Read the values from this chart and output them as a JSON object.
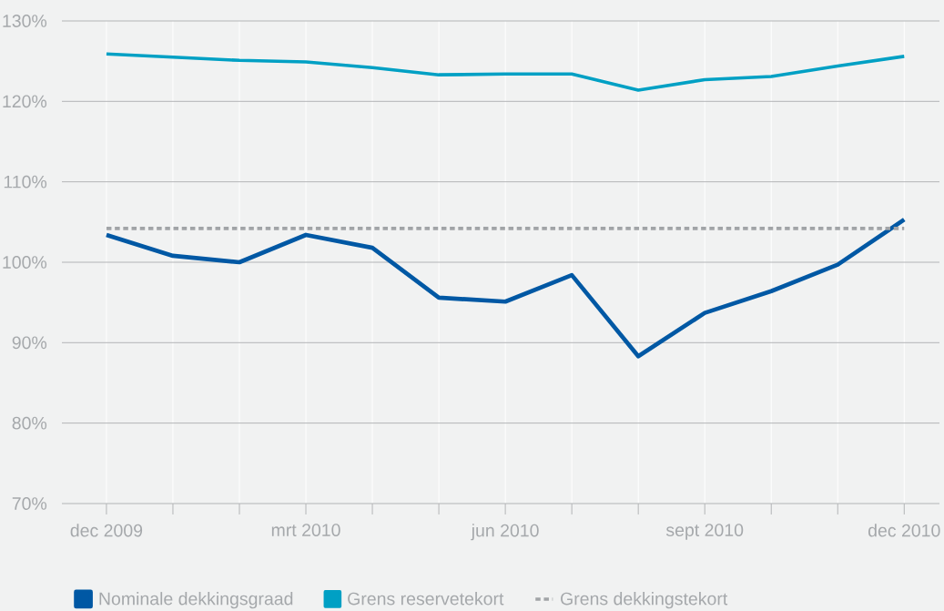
{
  "chart_data": {
    "type": "line",
    "categories": [
      "dec 2009",
      null,
      null,
      "mrt 2010",
      null,
      null,
      "jun 2010",
      null,
      null,
      "sept 2010",
      null,
      null,
      "dec 2010"
    ],
    "series": [
      {
        "name": "Nominale dekkingsgraad",
        "color": "#0058a4",
        "values": [
          103.4,
          100.8,
          100.0,
          103.4,
          101.8,
          95.6,
          95.1,
          98.4,
          88.3,
          93.7,
          96.4,
          99.7,
          105.3
        ]
      },
      {
        "name": "Grens reservetekort",
        "color": "#00a0c4",
        "values": [
          125.9,
          125.5,
          125.1,
          124.9,
          124.2,
          123.3,
          123.4,
          123.4,
          121.4,
          122.7,
          123.1,
          124.4,
          125.6
        ]
      },
      {
        "name": "Grens dekkingstekort",
        "color": "#a1a4a7",
        "line_style": "dashed",
        "values": [
          104.2,
          104.2,
          104.2,
          104.2,
          104.2,
          104.2,
          104.2,
          104.2,
          104.2,
          104.2,
          104.2,
          104.2,
          104.2
        ]
      }
    ],
    "ylim": [
      70,
      130
    ],
    "yticks": [
      {
        "value": 70,
        "label": "70%"
      },
      {
        "value": 80,
        "label": "80%"
      },
      {
        "value": 90,
        "label": "90%"
      },
      {
        "value": 100,
        "label": "100%"
      },
      {
        "value": 110,
        "label": "110%"
      },
      {
        "value": 120,
        "label": "120%"
      },
      {
        "value": 130,
        "label": "130%"
      }
    ],
    "grid": true,
    "legend": "bottom",
    "marker": "none",
    "line_style": "solid"
  }
}
